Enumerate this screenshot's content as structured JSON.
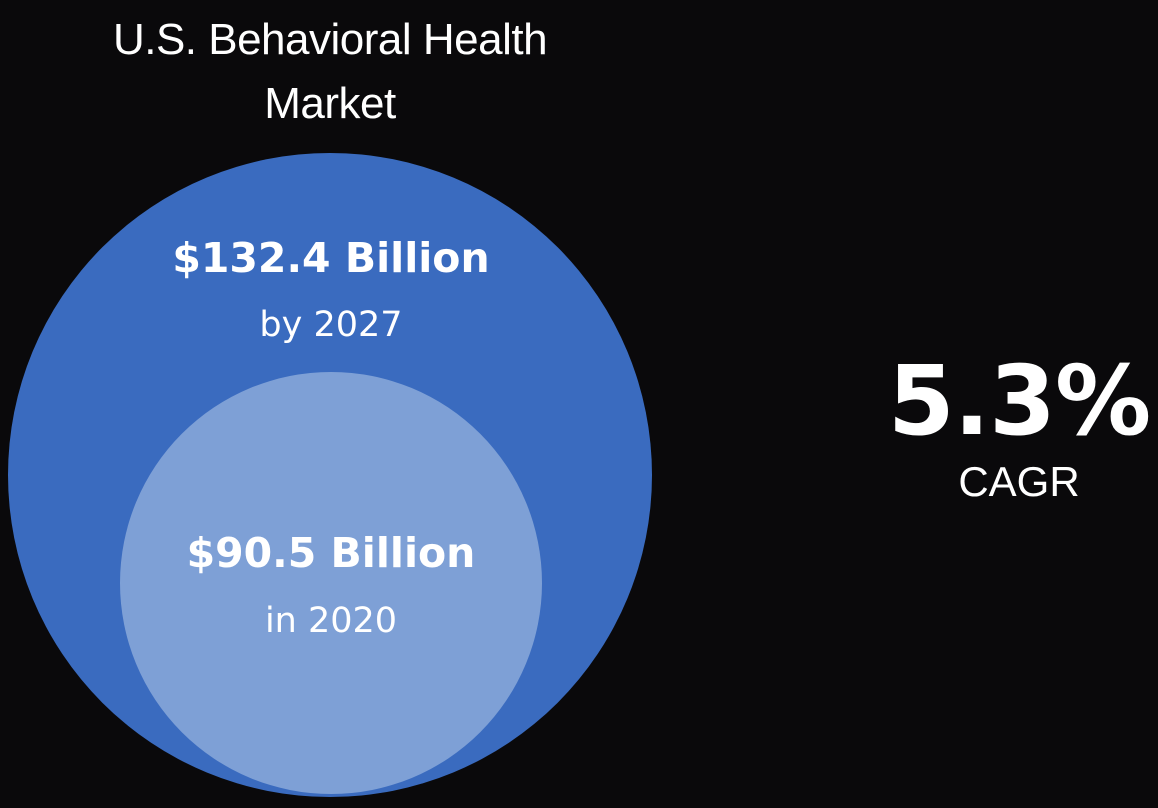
{
  "title_line1": "U.S. Behavioral Health",
  "title_line2": "Market",
  "cagr": {
    "value": "5.3%",
    "label": "CAGR"
  },
  "colors": {
    "background": "#0a090b",
    "outer_circle": "#3a6bbf",
    "inner_circle": "#7ea0d6",
    "text": "#ffffff"
  },
  "chart_data": {
    "type": "nested-circle",
    "title": "U.S. Behavioral Health Market",
    "series": [
      {
        "label": "$132.4 Billion",
        "sublabel": "by 2027",
        "value": 132.4,
        "unit": "Billion USD",
        "year": 2027
      },
      {
        "label": "$90.5 Billion",
        "sublabel": "in 2020",
        "value": 90.5,
        "unit": "Billion USD",
        "year": 2020
      }
    ],
    "cagr": "5.3%"
  }
}
